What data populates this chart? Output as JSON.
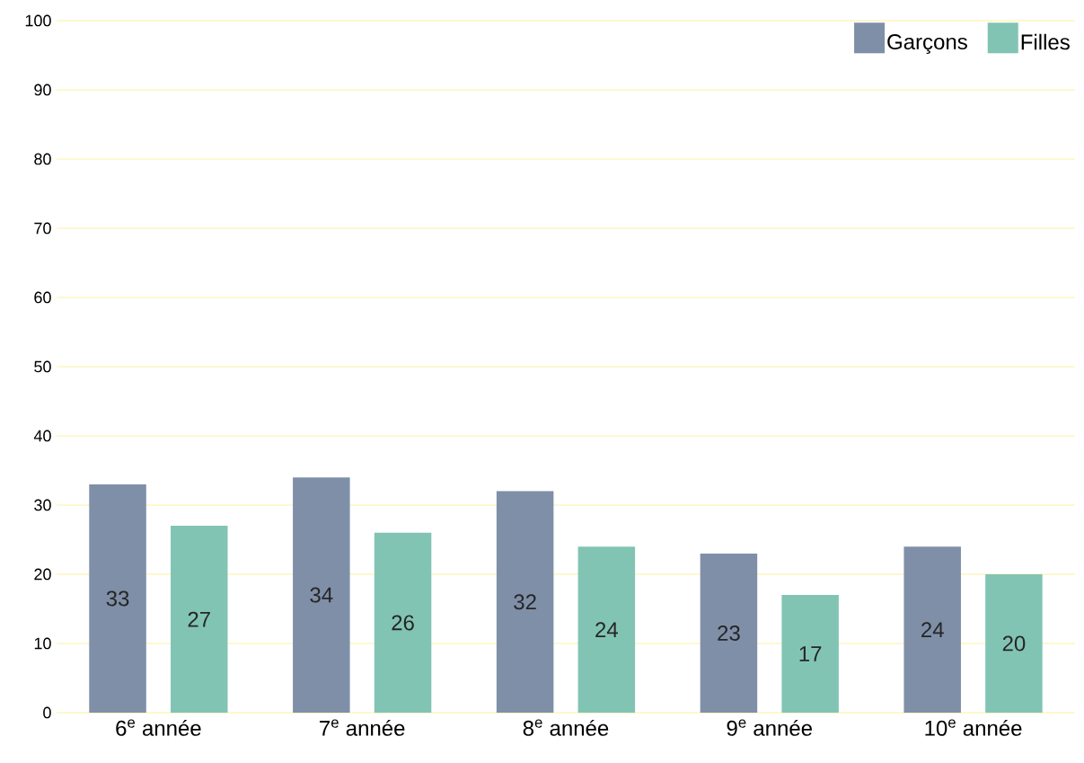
{
  "chart_data": {
    "type": "bar",
    "categories": [
      "6$^{e}$ année",
      "7$^{e}$ année",
      "8$^{e}$ année",
      "9$^{e}$ année",
      "10$^{e}$ année"
    ],
    "series": [
      {
        "name": "Garçons",
        "color": "#7f8fa8",
        "values": [
          33,
          34,
          32,
          23,
          24
        ]
      },
      {
        "name": "Filles",
        "color": "#82c4b4",
        "values": [
          27,
          26,
          24,
          17,
          20
        ]
      }
    ],
    "ylim": [
      0,
      100
    ],
    "yticks": [
      0,
      10,
      20,
      30,
      40,
      50,
      60,
      70,
      80,
      90,
      100
    ],
    "grid": "y",
    "legend": "top right",
    "data_labels": true
  }
}
